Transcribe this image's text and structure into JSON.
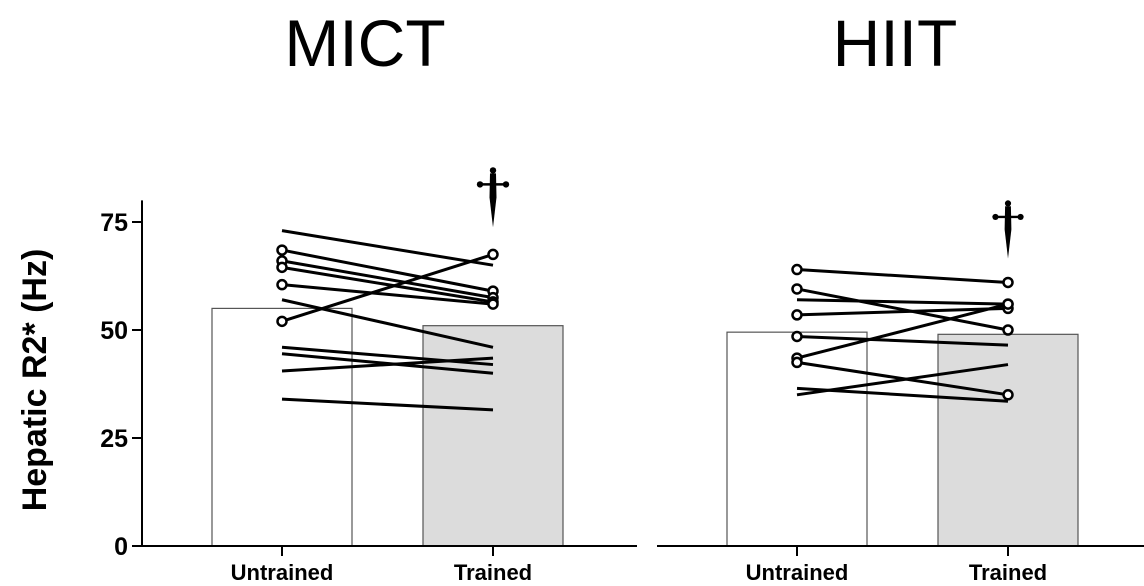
{
  "chart_data": {
    "type": "bar",
    "ylabel": "Hepatic R2* (Hz)",
    "ylim": [
      0,
      80
    ],
    "yticks": [
      0,
      25,
      50,
      75
    ],
    "significance_marker": "dagger",
    "colors": {
      "untrained_bar": "#ffffff",
      "trained_bar": "#dcdcdc",
      "bar_edge": "#555555",
      "lines": "#000000"
    },
    "panels": [
      {
        "title": "MICT",
        "categories": [
          "Untrained",
          "Trained"
        ],
        "values": [
          55,
          51
        ],
        "subjects": [
          {
            "untrained": 73,
            "trained": 65,
            "circle_untrained": false,
            "circle_trained": false
          },
          {
            "untrained": 68.5,
            "trained": 59,
            "circle_untrained": true,
            "circle_trained": true
          },
          {
            "untrained": 66,
            "trained": 57.5,
            "circle_untrained": true,
            "circle_trained": true
          },
          {
            "untrained": 64.5,
            "trained": 56.5,
            "circle_untrained": true,
            "circle_trained": true
          },
          {
            "untrained": 60.5,
            "trained": 56,
            "circle_untrained": true,
            "circle_trained": true
          },
          {
            "untrained": 57,
            "trained": 46,
            "circle_untrained": false,
            "circle_trained": false
          },
          {
            "untrained": 52,
            "trained": 67.5,
            "circle_untrained": true,
            "circle_trained": true
          },
          {
            "untrained": 46,
            "trained": 42,
            "circle_untrained": false,
            "circle_trained": false
          },
          {
            "untrained": 44.5,
            "trained": 40,
            "circle_untrained": false,
            "circle_trained": false
          },
          {
            "untrained": 40.5,
            "trained": 43.5,
            "circle_untrained": false,
            "circle_trained": false
          },
          {
            "untrained": 34,
            "trained": 31.5,
            "circle_untrained": false,
            "circle_trained": false
          }
        ]
      },
      {
        "title": "HIIT",
        "categories": [
          "Untrained",
          "Trained"
        ],
        "values": [
          49.5,
          49
        ],
        "subjects": [
          {
            "untrained": 64,
            "trained": 61,
            "circle_untrained": true,
            "circle_trained": true
          },
          {
            "untrained": 59.5,
            "trained": 50,
            "circle_untrained": true,
            "circle_trained": true
          },
          {
            "untrained": 57,
            "trained": 56,
            "circle_untrained": false,
            "circle_trained": true
          },
          {
            "untrained": 53.5,
            "trained": 55,
            "circle_untrained": true,
            "circle_trained": true
          },
          {
            "untrained": 48.5,
            "trained": 46.5,
            "circle_untrained": true,
            "circle_trained": false
          },
          {
            "untrained": 43.5,
            "trained": 56,
            "circle_untrained": true,
            "circle_trained": true
          },
          {
            "untrained": 42.5,
            "trained": 35,
            "circle_untrained": true,
            "circle_trained": true
          },
          {
            "untrained": 36.5,
            "trained": 33.5,
            "circle_untrained": false,
            "circle_trained": false
          },
          {
            "untrained": 35,
            "trained": 42,
            "circle_untrained": false,
            "circle_trained": false
          }
        ]
      }
    ]
  }
}
